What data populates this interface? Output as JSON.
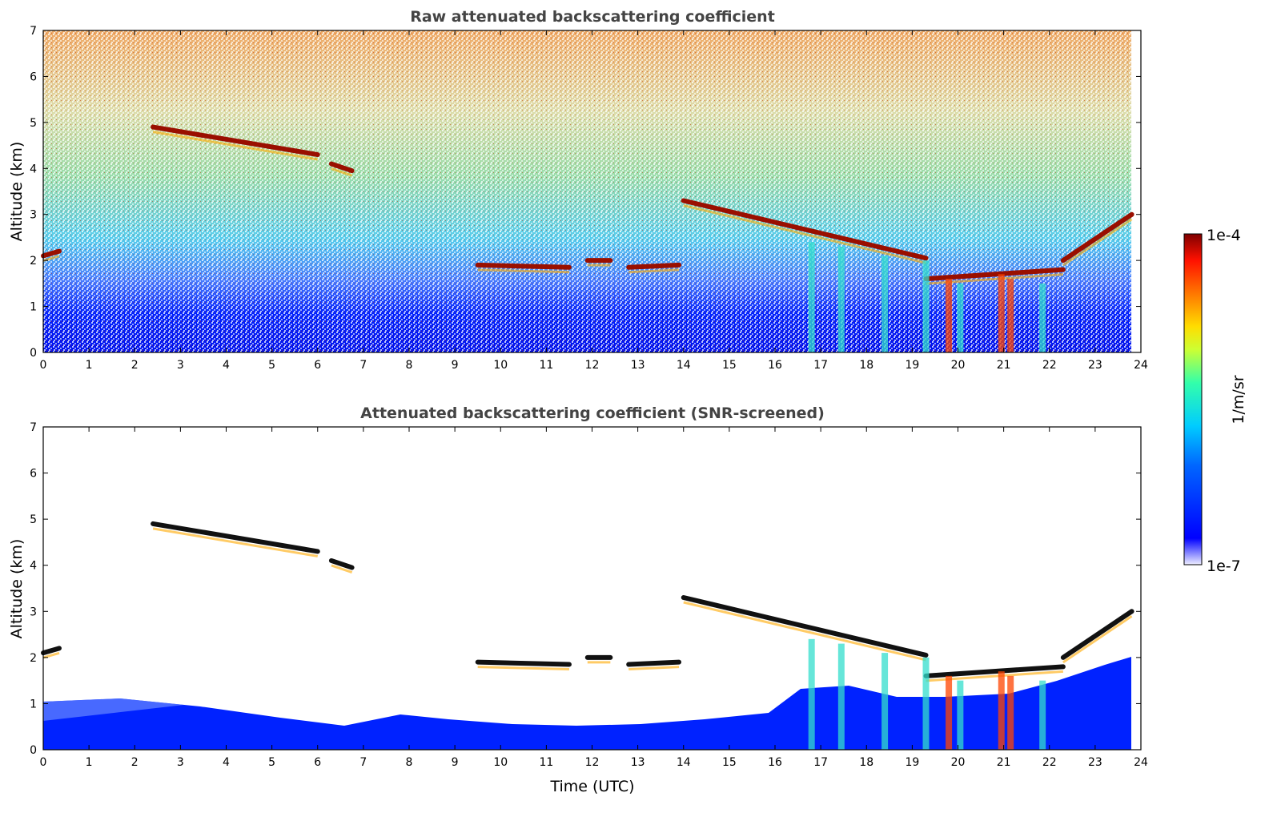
{
  "chart_data": [
    {
      "type": "heatmap",
      "title": "Raw attenuated backscattering coefficient",
      "xlabel": "",
      "ylabel": "Altitude (km)",
      "xlim": [
        0,
        24
      ],
      "ylim": [
        0,
        7
      ],
      "x_ticks": [
        "0",
        "1",
        "2",
        "3",
        "4",
        "5",
        "6",
        "7",
        "8",
        "9",
        "10",
        "11",
        "12",
        "13",
        "14",
        "15",
        "16",
        "17",
        "18",
        "19",
        "20",
        "21",
        "22",
        "23",
        "24"
      ],
      "y_ticks": [
        "0",
        "1",
        "2",
        "3",
        "4",
        "5",
        "6",
        "7"
      ],
      "cloud_layers": [
        {
          "t": [
            0.0,
            0.35
          ],
          "alt": [
            2.1,
            2.2
          ]
        },
        {
          "t": [
            2.4,
            6.0
          ],
          "alt": [
            4.9,
            4.3
          ]
        },
        {
          "t": [
            6.3,
            6.75
          ],
          "alt": [
            4.1,
            3.95
          ]
        },
        {
          "t": [
            9.5,
            11.5
          ],
          "alt": [
            1.9,
            1.85
          ]
        },
        {
          "t": [
            11.9,
            12.4
          ],
          "alt": [
            2.0,
            2.0
          ]
        },
        {
          "t": [
            12.8,
            13.9
          ],
          "alt": [
            1.85,
            1.9
          ]
        },
        {
          "t": [
            14.0,
            19.3
          ],
          "alt": [
            3.3,
            2.05
          ]
        },
        {
          "t": [
            19.3,
            22.3
          ],
          "alt": [
            1.6,
            1.8
          ]
        },
        {
          "t": [
            22.3,
            23.8
          ],
          "alt": [
            2.0,
            3.0
          ]
        }
      ]
    },
    {
      "type": "heatmap",
      "title": "Attenuated backscattering coefficient (SNR-screened)",
      "xlabel": "Time (UTC)",
      "ylabel": "Altitude (km)",
      "xlim": [
        0,
        24
      ],
      "ylim": [
        0,
        7
      ],
      "x_ticks": [
        "0",
        "1",
        "2",
        "3",
        "4",
        "5",
        "6",
        "7",
        "8",
        "9",
        "10",
        "11",
        "12",
        "13",
        "14",
        "15",
        "16",
        "17",
        "18",
        "19",
        "20",
        "21",
        "22",
        "23",
        "24"
      ],
      "y_ticks": [
        "0",
        "1",
        "2",
        "3",
        "4",
        "5",
        "6",
        "7"
      ]
    }
  ],
  "colorbar": {
    "label": "1/m/sr",
    "max_label": "1e-4",
    "min_label": "1e-7",
    "colormap": "jet",
    "colors": [
      "#eeeeff",
      "#0000ff",
      "#00aaff",
      "#00ffcc",
      "#aaff44",
      "#ffee00",
      "#ff7700",
      "#ff1100",
      "#7f0000"
    ]
  }
}
